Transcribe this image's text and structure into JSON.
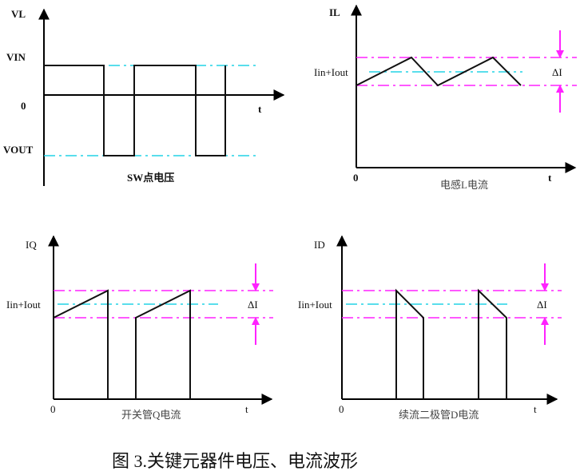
{
  "colors": {
    "axis": "#000000",
    "waveform": "#111111",
    "average_line": "#22d3e6",
    "ripple_bounds": "#ff22ff"
  },
  "panels": {
    "vl": {
      "y_label": "VL",
      "vin_label": "VIN",
      "zero_label": "0",
      "vout_label": "VOUT",
      "x_label": "t",
      "caption": "SW点电压"
    },
    "il": {
      "y_label": "IL",
      "level_label": "Iin+Iout",
      "delta_label": "ΔI",
      "zero_label": "0",
      "x_label": "t",
      "caption": "电感L电流"
    },
    "iq": {
      "y_label": "IQ",
      "level_label": "Iin+Iout",
      "delta_label": "ΔI",
      "zero_label": "0",
      "x_label": "t",
      "caption": "开关管Q电流"
    },
    "id": {
      "y_label": "ID",
      "level_label": "Iin+Iout",
      "delta_label": "ΔI",
      "zero_label": "0",
      "x_label": "t",
      "caption": "续流二极管D电流"
    }
  },
  "figure_caption": "图 3.关键元器件电压、电流波形"
}
